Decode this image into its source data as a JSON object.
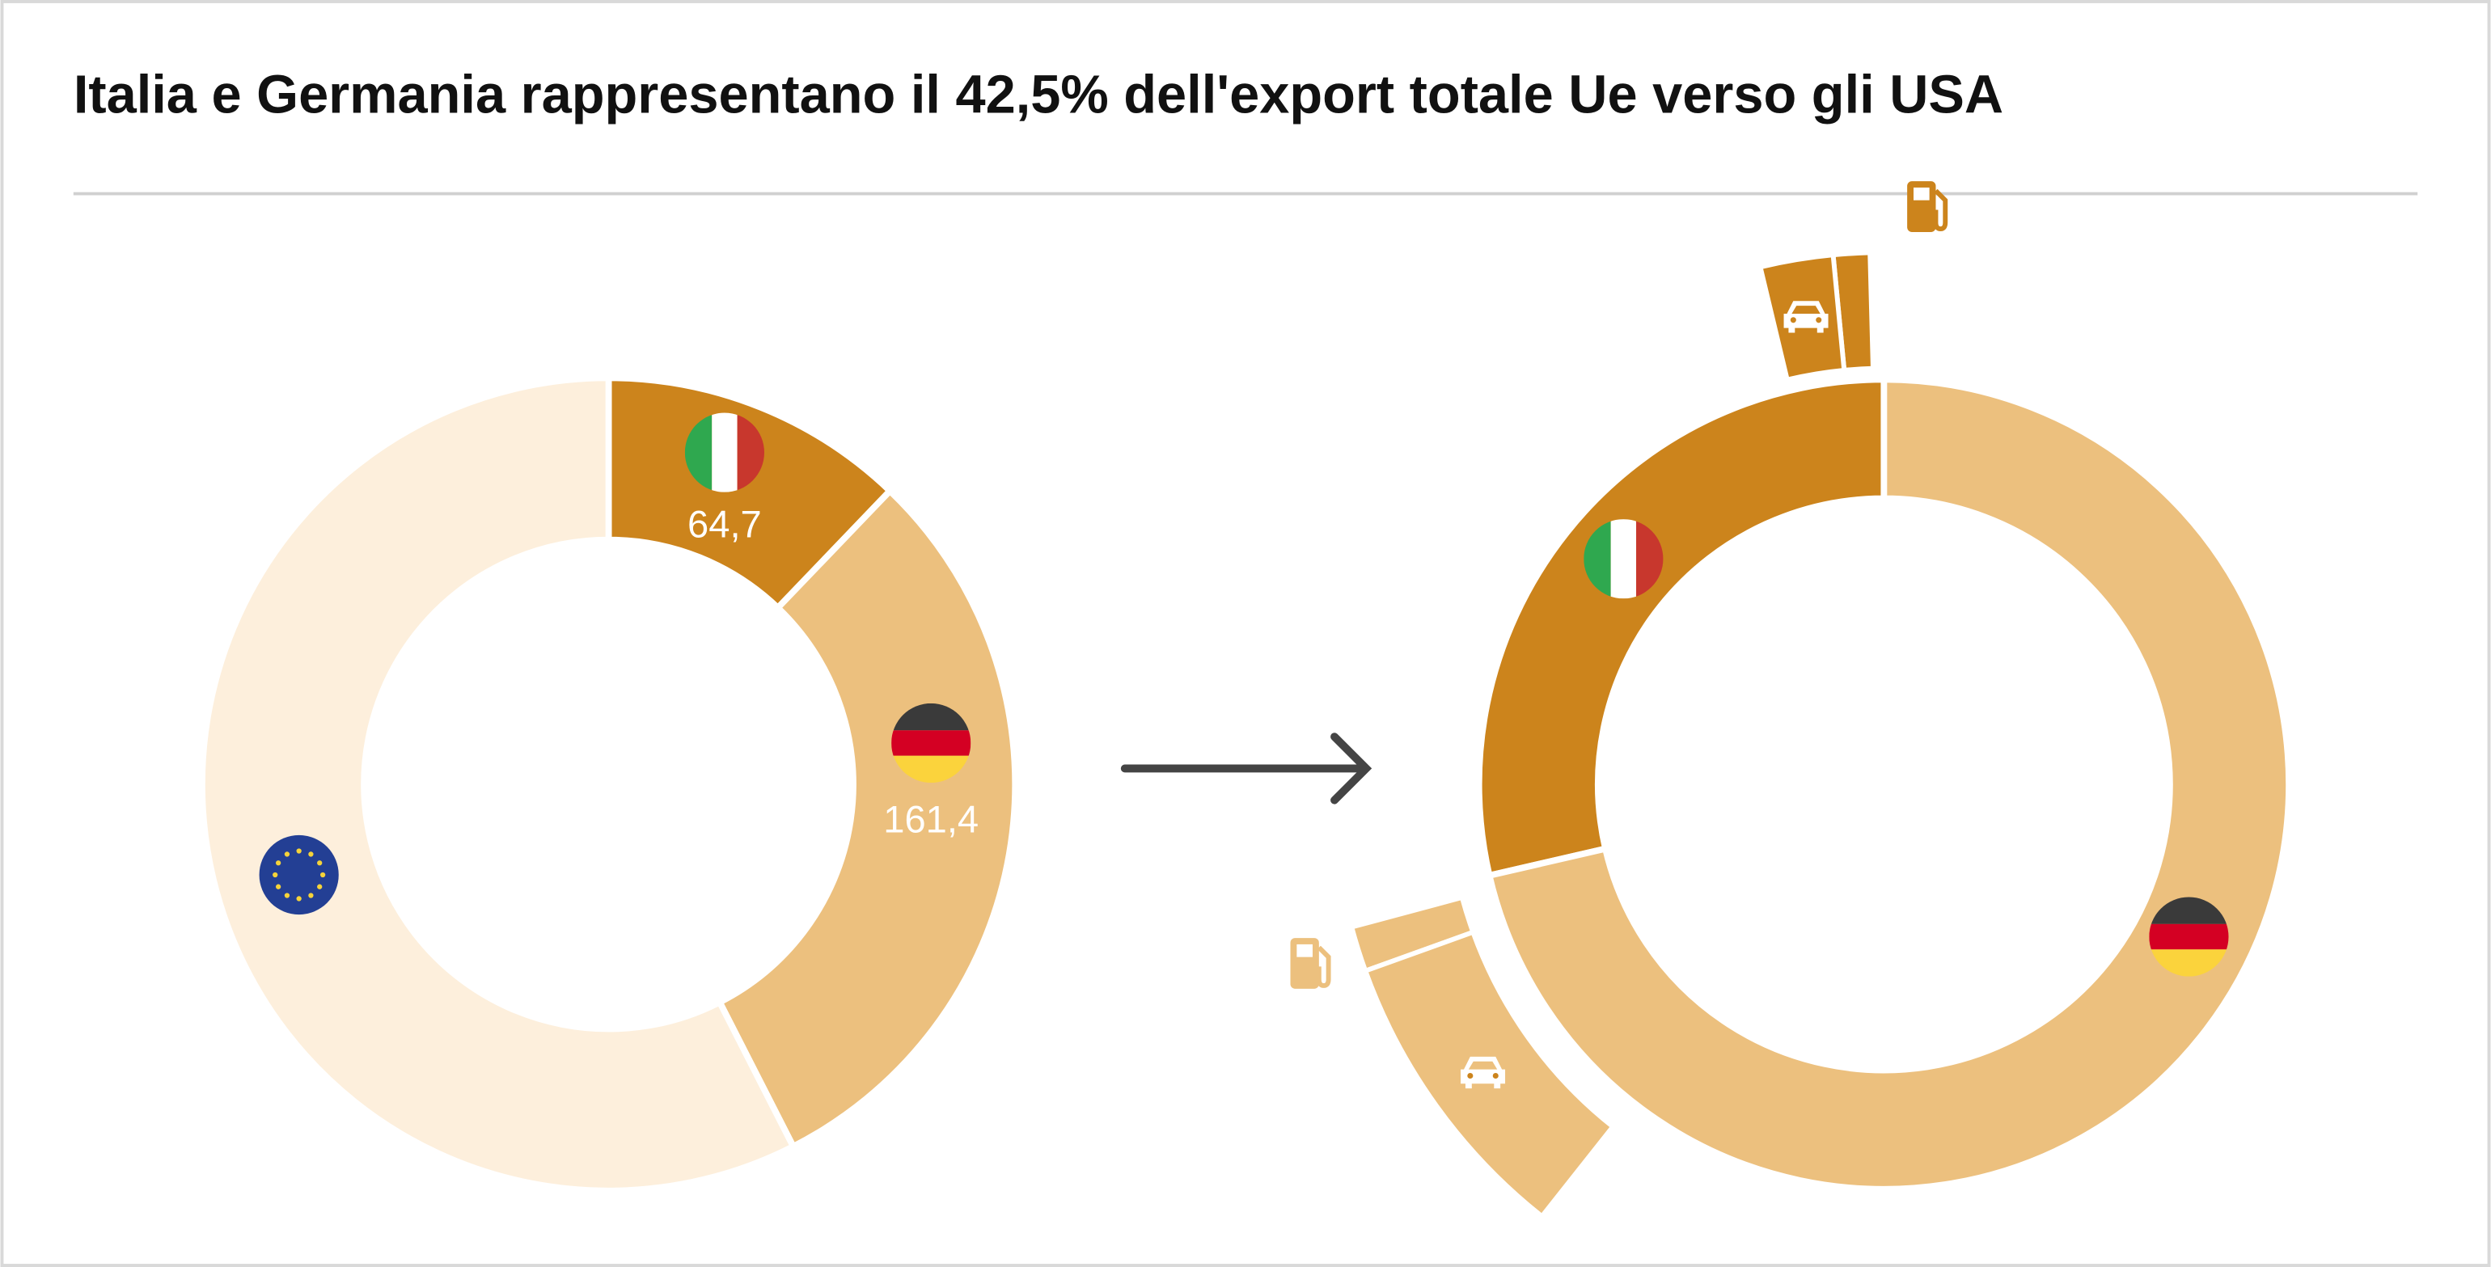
{
  "chart_data": [
    {
      "type": "donut",
      "title": "Italia e Germania rappresentano il 42,5% dell'export totale Ue verso gli USA",
      "values": [
        64.7,
        161.4,
        305.9
      ],
      "value_labels": [
        "64,7",
        "161,4",
        null
      ],
      "colors": [
        "#cc841c",
        "#ecc07e",
        "#fdefdc"
      ]
    },
    {
      "type": "donut",
      "values": [
        64.7,
        161.4
      ],
      "colors": [
        "#cc841c",
        "#ecc07e"
      ],
      "breakouts": [
        {
          "values": [
            2.5,
            5.0
          ],
          "color": "#cc841c"
        },
        {
          "values": [
            3.0,
            20.0
          ],
          "color": "#ecc07e"
        }
      ]
    }
  ]
}
